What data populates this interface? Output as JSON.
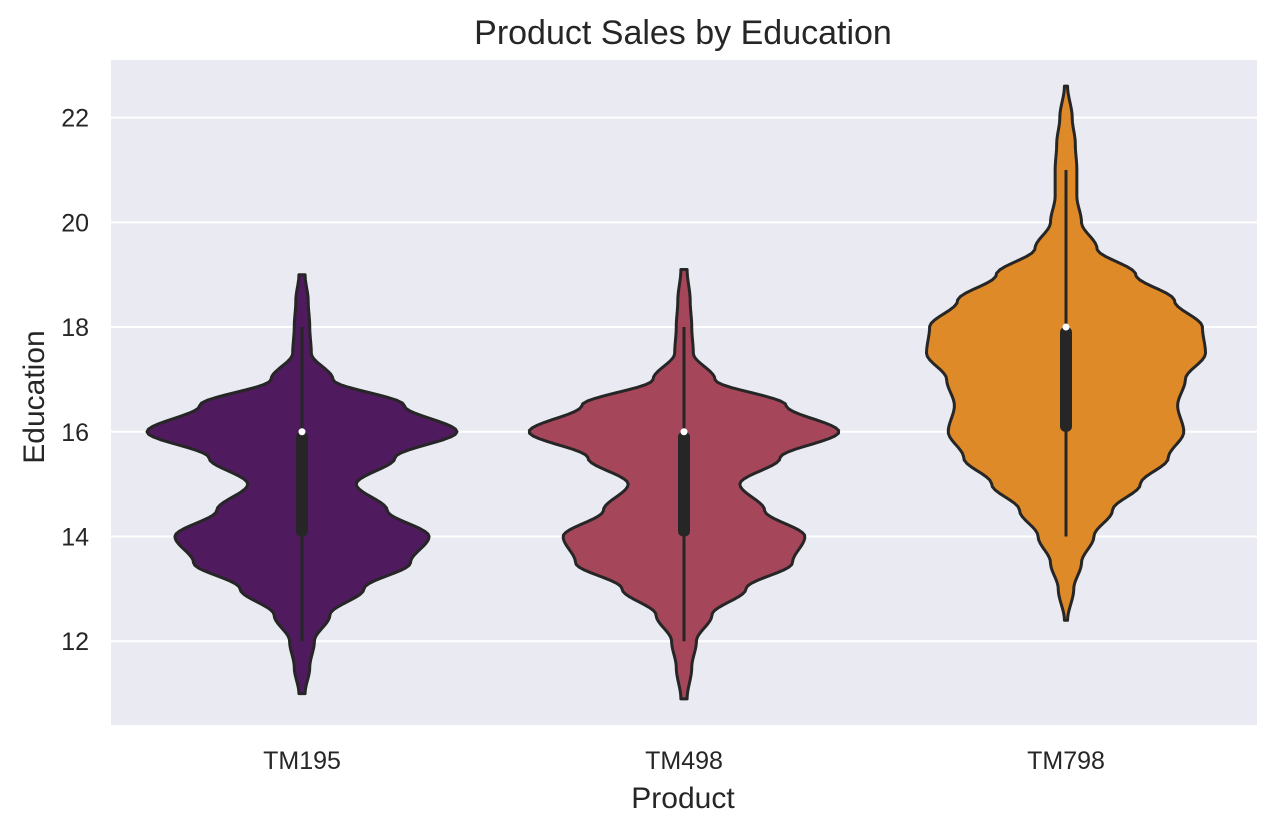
{
  "chart_data": {
    "type": "violin",
    "title": "Product Sales by Education",
    "xlabel": "Product",
    "ylabel": "Education",
    "ylim": [
      10.4,
      23.1
    ],
    "yticks": [
      12,
      14,
      16,
      18,
      20,
      22
    ],
    "grid": true,
    "legend": "none",
    "categories": [
      "TM195",
      "TM498",
      "TM798"
    ],
    "colors": [
      "#4f1a5e",
      "#a5465a",
      "#de8a28"
    ],
    "series": [
      {
        "category": "TM195",
        "violin_min": 11,
        "violin_max": 19,
        "whisker_low": 12,
        "q1": 14,
        "median": 16,
        "q3": 16,
        "whisker_high": 18,
        "density": [
          [
            11,
            0.02
          ],
          [
            11.5,
            0.05
          ],
          [
            12,
            0.08
          ],
          [
            12.5,
            0.18
          ],
          [
            13,
            0.4
          ],
          [
            13.5,
            0.7
          ],
          [
            14,
            0.82
          ],
          [
            14.5,
            0.55
          ],
          [
            15,
            0.35
          ],
          [
            15.5,
            0.6
          ],
          [
            16,
            1.0
          ],
          [
            16.5,
            0.66
          ],
          [
            17,
            0.2
          ],
          [
            17.5,
            0.06
          ],
          [
            18,
            0.05
          ],
          [
            18.5,
            0.04
          ],
          [
            19,
            0.02
          ]
        ]
      },
      {
        "category": "TM498",
        "violin_min": 10.9,
        "violin_max": 19.1,
        "whisker_low": 12,
        "q1": 14,
        "median": 16,
        "q3": 16,
        "whisker_high": 18,
        "density": [
          [
            10.9,
            0.02
          ],
          [
            11.5,
            0.05
          ],
          [
            12,
            0.08
          ],
          [
            12.5,
            0.18
          ],
          [
            13,
            0.4
          ],
          [
            13.5,
            0.7
          ],
          [
            14,
            0.78
          ],
          [
            14.5,
            0.52
          ],
          [
            15,
            0.36
          ],
          [
            15.5,
            0.62
          ],
          [
            16,
            1.0
          ],
          [
            16.5,
            0.66
          ],
          [
            17,
            0.2
          ],
          [
            17.5,
            0.06
          ],
          [
            18,
            0.05
          ],
          [
            18.5,
            0.04
          ],
          [
            19.1,
            0.02
          ]
        ]
      },
      {
        "category": "TM798",
        "violin_min": 12.4,
        "violin_max": 22.6,
        "whisker_low": 14,
        "q1": 16,
        "median": 18,
        "q3": 18,
        "whisker_high": 21,
        "density": [
          [
            12.4,
            0.01
          ],
          [
            13,
            0.05
          ],
          [
            13.5,
            0.1
          ],
          [
            14,
            0.18
          ],
          [
            14.5,
            0.3
          ],
          [
            15,
            0.48
          ],
          [
            15.5,
            0.66
          ],
          [
            16,
            0.76
          ],
          [
            16.5,
            0.72
          ],
          [
            17,
            0.77
          ],
          [
            17.5,
            0.9
          ],
          [
            18,
            0.88
          ],
          [
            18.5,
            0.7
          ],
          [
            19,
            0.45
          ],
          [
            19.5,
            0.2
          ],
          [
            20,
            0.1
          ],
          [
            20.5,
            0.07
          ],
          [
            21,
            0.07
          ],
          [
            21.5,
            0.06
          ],
          [
            22,
            0.04
          ],
          [
            22.6,
            0.01
          ]
        ]
      }
    ]
  }
}
